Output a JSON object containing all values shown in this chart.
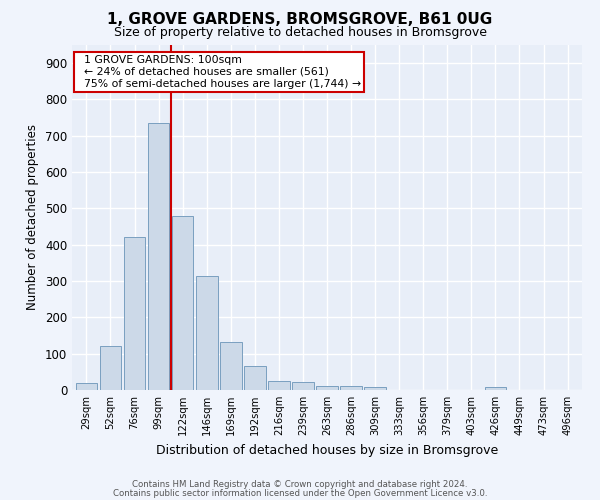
{
  "title": "1, GROVE GARDENS, BROMSGROVE, B61 0UG",
  "subtitle": "Size of property relative to detached houses in Bromsgrove",
  "xlabel": "Distribution of detached houses by size in Bromsgrove",
  "ylabel": "Number of detached properties",
  "bar_color": "#ccd9e8",
  "bar_edge_color": "#7a9fc0",
  "background_color": "#e8eef8",
  "fig_color": "#f0f4fc",
  "grid_color": "#ffffff",
  "categories": [
    "29sqm",
    "52sqm",
    "76sqm",
    "99sqm",
    "122sqm",
    "146sqm",
    "169sqm",
    "192sqm",
    "216sqm",
    "239sqm",
    "263sqm",
    "286sqm",
    "309sqm",
    "333sqm",
    "356sqm",
    "379sqm",
    "403sqm",
    "426sqm",
    "449sqm",
    "473sqm",
    "496sqm"
  ],
  "values": [
    20,
    122,
    420,
    735,
    480,
    315,
    133,
    67,
    25,
    22,
    11,
    10,
    7,
    0,
    0,
    0,
    0,
    8,
    0,
    0,
    0
  ],
  "ylim": [
    0,
    950
  ],
  "yticks": [
    0,
    100,
    200,
    300,
    400,
    500,
    600,
    700,
    800,
    900
  ],
  "red_line_x": 3.5,
  "annotation_text": "  1 GROVE GARDENS: 100sqm\n  ← 24% of detached houses are smaller (561)\n  75% of semi-detached houses are larger (1,744) →",
  "annotation_box_color": "#ffffff",
  "annotation_box_edge": "#cc0000",
  "red_line_color": "#cc0000",
  "footer_line1": "Contains HM Land Registry data © Crown copyright and database right 2024.",
  "footer_line2": "Contains public sector information licensed under the Open Government Licence v3.0."
}
